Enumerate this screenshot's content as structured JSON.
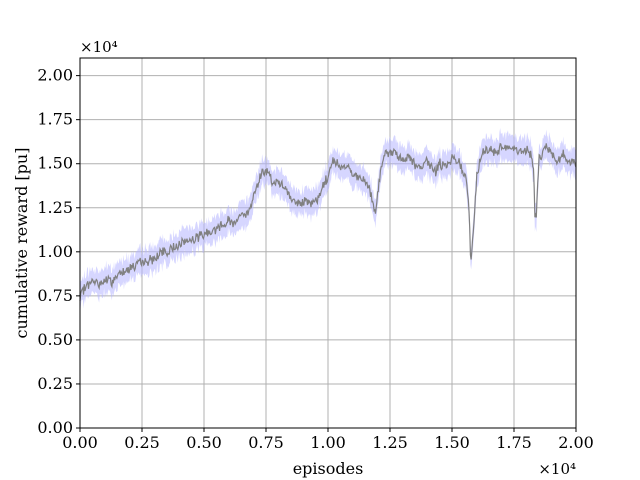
{
  "chart_data": {
    "type": "line",
    "title": "",
    "xlabel": "episodes",
    "ylabel": "cumulative reward [pu]",
    "x_offset_label": "×10⁴",
    "y_offset_label": "×10⁴",
    "xlim": [
      0,
      2.0
    ],
    "ylim": [
      0,
      2.1
    ],
    "x_ticks": [
      "0.00",
      "0.25",
      "0.50",
      "0.75",
      "1.00",
      "1.25",
      "1.50",
      "1.75",
      "2.00"
    ],
    "y_ticks": [
      "0.00",
      "0.25",
      "0.50",
      "0.75",
      "1.00",
      "1.25",
      "1.50",
      "1.75",
      "2.00"
    ],
    "grid": true,
    "legend": "none",
    "colors": {
      "mean_line": "#808080",
      "band": "#b4b4ff"
    },
    "series": [
      {
        "x": [
          0.0,
          0.01,
          0.03,
          0.05,
          0.08,
          0.1,
          0.13,
          0.16,
          0.2,
          0.25,
          0.3,
          0.33,
          0.35,
          0.38,
          0.4,
          0.45,
          0.5,
          0.55,
          0.6,
          0.62,
          0.65,
          0.68,
          0.7,
          0.73,
          0.76,
          0.78,
          0.8,
          0.83,
          0.85,
          0.88,
          0.9,
          0.93,
          0.96,
          0.98,
          1.0,
          1.02,
          1.05,
          1.08,
          1.1,
          1.13,
          1.16,
          1.18,
          1.19,
          1.21,
          1.23,
          1.25,
          1.28,
          1.3,
          1.33,
          1.35,
          1.38,
          1.4,
          1.43,
          1.45,
          1.48,
          1.5,
          1.52,
          1.54,
          1.56,
          1.57,
          1.575,
          1.585,
          1.6,
          1.62,
          1.65,
          1.68,
          1.7,
          1.73,
          1.75,
          1.78,
          1.8,
          1.82,
          1.83,
          1.835,
          1.84,
          1.85,
          1.86,
          1.88,
          1.9,
          1.92,
          1.95,
          1.98,
          2.0
        ],
        "y": [
          0.72,
          0.78,
          0.81,
          0.83,
          0.82,
          0.84,
          0.83,
          0.88,
          0.91,
          0.94,
          0.96,
          1.0,
          0.99,
          1.03,
          1.05,
          1.07,
          1.1,
          1.13,
          1.18,
          1.16,
          1.22,
          1.21,
          1.33,
          1.44,
          1.46,
          1.38,
          1.4,
          1.35,
          1.3,
          1.28,
          1.29,
          1.27,
          1.3,
          1.38,
          1.42,
          1.53,
          1.48,
          1.5,
          1.44,
          1.41,
          1.38,
          1.28,
          1.22,
          1.43,
          1.57,
          1.56,
          1.55,
          1.52,
          1.54,
          1.5,
          1.48,
          1.52,
          1.45,
          1.5,
          1.48,
          1.53,
          1.52,
          1.48,
          1.4,
          1.2,
          0.92,
          1.1,
          1.42,
          1.56,
          1.58,
          1.57,
          1.6,
          1.58,
          1.59,
          1.57,
          1.58,
          1.55,
          1.45,
          1.18,
          1.22,
          1.52,
          1.55,
          1.6,
          1.56,
          1.52,
          1.55,
          1.5,
          1.52
        ],
        "band_halfwidth": 0.07
      }
    ]
  }
}
